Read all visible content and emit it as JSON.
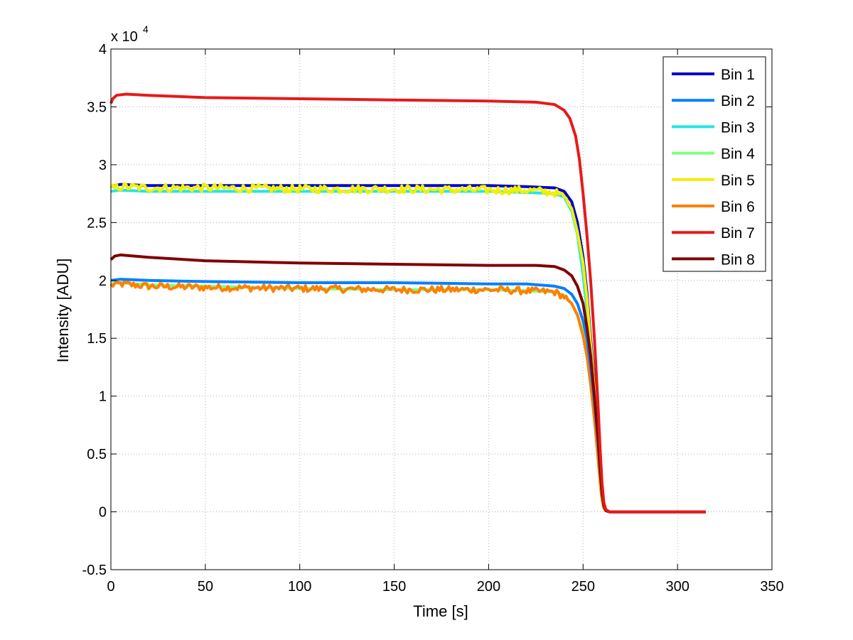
{
  "chart_data": {
    "type": "line",
    "title": "",
    "xlabel": "Time [s]",
    "ylabel": "Intensity [ADU]",
    "y_multiplier_label": "x 10",
    "y_multiplier_exponent": "4",
    "xlim": [
      0,
      350
    ],
    "ylim": [
      -0.5,
      4
    ],
    "x_ticks": [
      0,
      50,
      100,
      150,
      200,
      250,
      300,
      350
    ],
    "y_ticks": [
      -0.5,
      0,
      0.5,
      1,
      1.5,
      2,
      2.5,
      3,
      3.5,
      4
    ],
    "x_tick_labels": [
      "0",
      "50",
      "100",
      "150",
      "200",
      "250",
      "300",
      "350"
    ],
    "y_tick_labels": [
      "-0.5",
      "0",
      "0.5",
      "1",
      "1.5",
      "2",
      "2.5",
      "3",
      "3.5",
      "4"
    ],
    "grid": true,
    "legend_position": "top-right",
    "series": [
      {
        "name": "Bin 1",
        "color": "#0000c8",
        "x": [
          0,
          5,
          20,
          50,
          100,
          150,
          200,
          220,
          235,
          240,
          244,
          247,
          250,
          252,
          254,
          256,
          258,
          259,
          260,
          261,
          262,
          264,
          270,
          300,
          315
        ],
        "y": [
          2.81,
          2.83,
          2.82,
          2.82,
          2.82,
          2.82,
          2.82,
          2.81,
          2.8,
          2.77,
          2.68,
          2.5,
          2.2,
          1.9,
          1.5,
          1.1,
          0.6,
          0.35,
          0.15,
          0.05,
          0.01,
          0,
          0,
          0,
          0
        ]
      },
      {
        "name": "Bin 2",
        "color": "#0080ff",
        "x": [
          0,
          5,
          20,
          50,
          100,
          150,
          200,
          220,
          235,
          240,
          244,
          247,
          250,
          252,
          254,
          256,
          258,
          259,
          260,
          261,
          262,
          264,
          270,
          300,
          315
        ],
        "y": [
          2.0,
          2.01,
          2.0,
          1.99,
          1.98,
          1.98,
          1.97,
          1.97,
          1.95,
          1.93,
          1.88,
          1.8,
          1.65,
          1.5,
          1.25,
          0.95,
          0.55,
          0.3,
          0.12,
          0.04,
          0.01,
          0,
          0,
          0,
          0
        ]
      },
      {
        "name": "Bin 3",
        "color": "#20e6e6",
        "x": [
          0,
          5,
          20,
          50,
          100,
          150,
          200,
          220,
          235,
          240,
          244,
          247,
          250,
          252,
          254,
          256,
          258,
          259,
          260,
          261,
          262,
          264,
          270,
          300,
          315
        ],
        "y": [
          2.77,
          2.78,
          2.77,
          2.77,
          2.77,
          2.77,
          2.77,
          2.76,
          2.75,
          2.72,
          2.6,
          2.4,
          2.05,
          1.75,
          1.4,
          1.0,
          0.55,
          0.3,
          0.12,
          0.04,
          0.01,
          0,
          0,
          0,
          0
        ]
      },
      {
        "name": "Bin 4",
        "color": "#7fff7f",
        "x": [
          0,
          5,
          20,
          50,
          100,
          150,
          200,
          220,
          235,
          240,
          244,
          247,
          250,
          252,
          254,
          256,
          258,
          259,
          260,
          261,
          262,
          264,
          270,
          300,
          315
        ],
        "y": [
          1.97,
          1.98,
          1.96,
          1.95,
          1.93,
          1.92,
          1.92,
          1.91,
          1.9,
          1.87,
          1.8,
          1.7,
          1.55,
          1.38,
          1.15,
          0.85,
          0.5,
          0.28,
          0.1,
          0.03,
          0.01,
          0,
          0,
          0,
          0
        ]
      },
      {
        "name": "Bin 5",
        "color": "#f0f000",
        "noise": 0.035,
        "x": [
          0,
          5,
          20,
          50,
          100,
          150,
          200,
          220,
          235,
          240,
          244,
          247,
          250,
          252,
          254,
          256,
          258,
          259,
          260,
          261,
          262,
          264,
          270,
          300,
          315
        ],
        "y": [
          2.79,
          2.81,
          2.8,
          2.8,
          2.79,
          2.79,
          2.78,
          2.78,
          2.76,
          2.72,
          2.62,
          2.42,
          2.15,
          1.85,
          1.45,
          1.05,
          0.58,
          0.3,
          0.12,
          0.04,
          0.01,
          0,
          0,
          0,
          0
        ]
      },
      {
        "name": "Bin 6",
        "color": "#ff8000",
        "noise": 0.03,
        "x": [
          0,
          5,
          20,
          50,
          100,
          150,
          200,
          220,
          235,
          240,
          244,
          247,
          250,
          252,
          254,
          256,
          258,
          259,
          260,
          261,
          262,
          264,
          270,
          300,
          315
        ],
        "y": [
          1.96,
          1.97,
          1.95,
          1.94,
          1.93,
          1.92,
          1.92,
          1.91,
          1.9,
          1.86,
          1.8,
          1.7,
          1.52,
          1.35,
          1.1,
          0.8,
          0.45,
          0.25,
          0.1,
          0.03,
          0.01,
          0,
          0,
          0,
          0
        ]
      },
      {
        "name": "Bin 7",
        "color": "#e61a1a",
        "x": [
          0,
          1,
          3,
          8,
          20,
          50,
          100,
          150,
          200,
          225,
          235,
          240,
          243,
          246,
          248,
          250,
          252,
          254,
          256,
          258,
          259,
          260,
          261,
          262,
          264,
          270,
          300,
          315
        ],
        "y": [
          3.53,
          3.57,
          3.6,
          3.61,
          3.6,
          3.58,
          3.57,
          3.56,
          3.55,
          3.54,
          3.52,
          3.47,
          3.4,
          3.25,
          3.05,
          2.75,
          2.4,
          2.0,
          1.5,
          0.9,
          0.55,
          0.25,
          0.08,
          0.02,
          0,
          0,
          0,
          0
        ]
      },
      {
        "name": "Bin 8",
        "color": "#800000",
        "x": [
          0,
          2,
          5,
          20,
          50,
          100,
          150,
          200,
          225,
          235,
          240,
          244,
          247,
          250,
          252,
          254,
          256,
          258,
          259,
          260,
          261,
          262,
          264,
          270,
          300,
          315
        ],
        "y": [
          2.18,
          2.21,
          2.22,
          2.2,
          2.17,
          2.15,
          2.14,
          2.13,
          2.13,
          2.12,
          2.09,
          2.04,
          1.95,
          1.8,
          1.6,
          1.35,
          1.0,
          0.6,
          0.35,
          0.15,
          0.05,
          0.01,
          0,
          0,
          0,
          0
        ]
      }
    ]
  }
}
